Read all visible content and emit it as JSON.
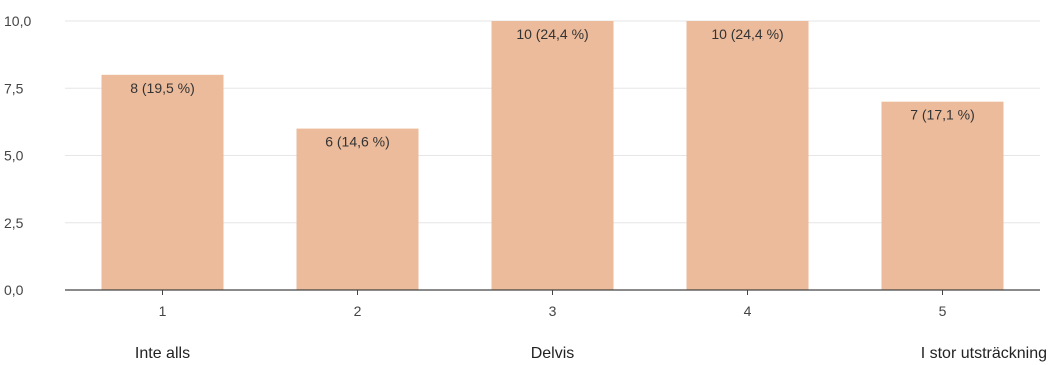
{
  "chart_data": {
    "type": "bar",
    "categories": [
      "1",
      "2",
      "3",
      "4",
      "5"
    ],
    "values": [
      8,
      6,
      10,
      10,
      7
    ],
    "data_labels": [
      "8 (19,5 %)",
      "6 (14,6 %)",
      "10 (24,4 %)",
      "10 (24,4 %)",
      "7 (17,1 %)"
    ],
    "category_descriptions": [
      {
        "category": "1",
        "text": "Inte alls"
      },
      {
        "category": "3",
        "text": "Delvis"
      },
      {
        "category": "5",
        "text": "I stor utsträckning"
      }
    ],
    "yticks": [
      "0,0",
      "2,5",
      "5,0",
      "7,5",
      "10,0"
    ],
    "ytick_values": [
      0,
      2.5,
      5,
      7.5,
      10
    ],
    "ylim": [
      0,
      10
    ],
    "title": "",
    "xlabel": "",
    "ylabel": "",
    "grid": true,
    "colors": {
      "bar": "#ebbb9b",
      "grid": "#e6e6e6",
      "axis": "#444444"
    }
  }
}
